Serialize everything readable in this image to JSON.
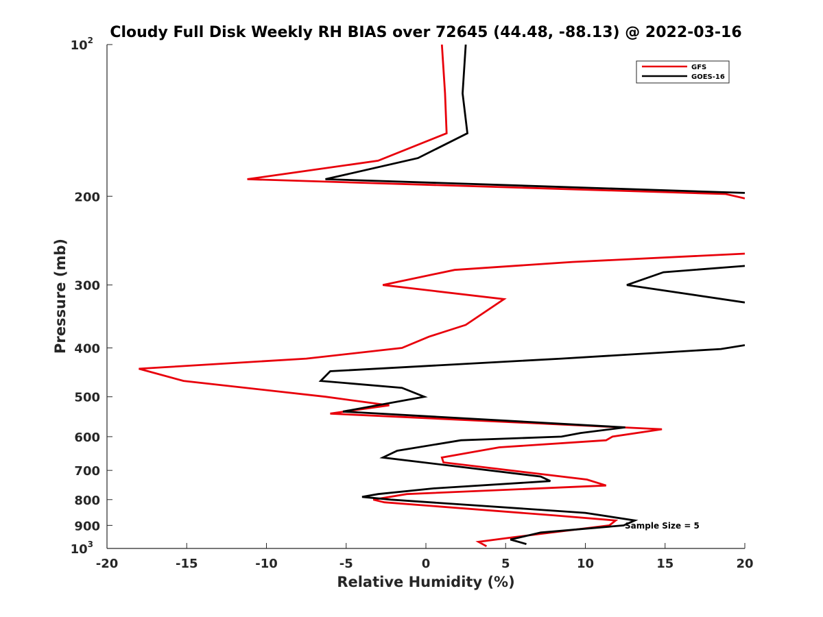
{
  "chart_data": {
    "type": "line",
    "title": "Cloudy Full Disk Weekly RH BIAS over 72645 (44.48, -88.13) @ 2022-03-16",
    "xlabel": "Relative Humidity (%)",
    "ylabel": "Pressure (mb)",
    "xlim": [
      -20,
      20
    ],
    "ylim": [
      100,
      1000
    ],
    "y_scale": "log",
    "y_reversed": true,
    "grid": false,
    "legend_position": "top-right",
    "x_ticks": [
      "-20",
      "-15",
      "-10",
      "-5",
      "0",
      "5",
      "10",
      "15",
      "20"
    ],
    "y_ticks": [
      {
        "base": "10",
        "exp": "2"
      },
      {
        "base": "200",
        "exp": ""
      },
      {
        "base": "300",
        "exp": ""
      },
      {
        "base": "400",
        "exp": ""
      },
      {
        "base": "500",
        "exp": ""
      },
      {
        "base": "600",
        "exp": ""
      },
      {
        "base": "700",
        "exp": ""
      },
      {
        "base": "800",
        "exp": ""
      },
      {
        "base": "900",
        "exp": ""
      },
      {
        "base": "10",
        "exp": "3"
      }
    ],
    "annotation": "Sample Size = 5",
    "series": [
      {
        "name": "GFS",
        "color": "#e8000b",
        "points": [
          [
            1.0,
            100
          ],
          [
            1.2,
            125
          ],
          [
            1.3,
            150
          ],
          [
            -3.0,
            170
          ],
          [
            -11.2,
            185
          ],
          [
            18.8,
            198
          ],
          [
            20.0,
            202
          ],
          [
            null,
            null
          ],
          [
            20.0,
            260
          ],
          [
            9.2,
            270
          ],
          [
            1.8,
            280
          ],
          [
            -2.7,
            300
          ],
          [
            4.9,
            320
          ],
          [
            2.5,
            360
          ],
          [
            0.2,
            380
          ],
          [
            -1.5,
            400
          ],
          [
            -7.5,
            420
          ],
          [
            -18.0,
            440
          ],
          [
            -15.2,
            465
          ],
          [
            -6.3,
            500
          ],
          [
            -2.3,
            520
          ],
          [
            -6.0,
            540
          ],
          [
            14.8,
            580
          ],
          [
            11.7,
            600
          ],
          [
            11.3,
            610
          ],
          [
            4.6,
            630
          ],
          [
            1.0,
            660
          ],
          [
            1.1,
            675
          ],
          [
            10.1,
            730
          ],
          [
            11.3,
            750
          ],
          [
            -1.2,
            780
          ],
          [
            -3.3,
            800
          ],
          [
            -2.6,
            810
          ],
          [
            8.1,
            860
          ],
          [
            11.9,
            880
          ],
          [
            11.5,
            900
          ],
          [
            5.5,
            950
          ],
          [
            3.3,
            970
          ],
          [
            3.8,
            990
          ]
        ]
      },
      {
        "name": "GOES-16",
        "color": "#000000",
        "points": [
          [
            2.5,
            100
          ],
          [
            2.3,
            125
          ],
          [
            2.6,
            150
          ],
          [
            -0.5,
            168
          ],
          [
            -6.3,
            185
          ],
          [
            20.0,
            197
          ],
          [
            null,
            null
          ],
          [
            20.0,
            275
          ],
          [
            14.9,
            283
          ],
          [
            12.6,
            300
          ],
          [
            20.0,
            325
          ],
          [
            null,
            null
          ],
          [
            20.0,
            395
          ],
          [
            18.5,
            402
          ],
          [
            8.5,
            420
          ],
          [
            -6.0,
            445
          ],
          [
            -6.6,
            465
          ],
          [
            -1.5,
            480
          ],
          [
            -0.1,
            500
          ],
          [
            -5.2,
            535
          ],
          [
            12.5,
            575
          ],
          [
            9.7,
            590
          ],
          [
            8.5,
            600
          ],
          [
            2.2,
            610
          ],
          [
            -1.8,
            640
          ],
          [
            -2.7,
            660
          ],
          [
            7.2,
            720
          ],
          [
            7.8,
            735
          ],
          [
            0.5,
            760
          ],
          [
            -3.0,
            780
          ],
          [
            -4.0,
            790
          ],
          [
            -2.2,
            800
          ],
          [
            10.0,
            850
          ],
          [
            13.1,
            880
          ],
          [
            12.4,
            900
          ],
          [
            7.2,
            930
          ],
          [
            5.3,
            960
          ],
          [
            6.3,
            980
          ]
        ]
      }
    ]
  }
}
